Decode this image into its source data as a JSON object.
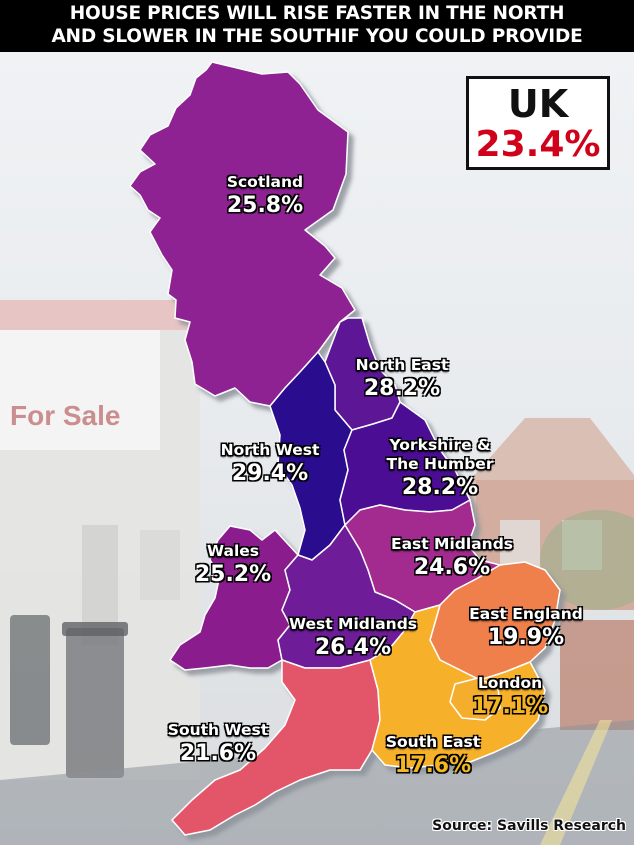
{
  "headline": {
    "line1": "HOUSE PRICES WILL RISE FASTER IN THE NORTH",
    "line2": "AND SLOWER IN THE SOUTHIF YOU COULD PROVIDE"
  },
  "uk_total": {
    "label": "UK",
    "value": "23.4%"
  },
  "background": {
    "sign_text": "For Sale"
  },
  "regions": [
    {
      "key": "scotland",
      "name": "Scotland",
      "value": "25.8%",
      "growth_pct": 25.8,
      "color": "#8e2393",
      "value_color": "#ffffff"
    },
    {
      "key": "north_east",
      "name": "North East",
      "value": "28.2%",
      "growth_pct": 28.2,
      "color": "#5b1596",
      "value_color": "#ffffff"
    },
    {
      "key": "north_west",
      "name": "North West",
      "value": "29.4%",
      "growth_pct": 29.4,
      "color": "#2b0a8f",
      "value_color": "#ffffff"
    },
    {
      "key": "yorkshire",
      "name": "Yorkshire & The Humber",
      "name_line1": "Yorkshire &",
      "name_line2": "The Humber",
      "value": "28.2%",
      "growth_pct": 28.2,
      "color": "#4b0f94",
      "value_color": "#ffffff"
    },
    {
      "key": "wales",
      "name": "Wales",
      "value": "25.2%",
      "growth_pct": 25.2,
      "color": "#8a1f8e",
      "value_color": "#ffffff"
    },
    {
      "key": "east_midlands",
      "name": "East Midlands",
      "value": "24.6%",
      "growth_pct": 24.6,
      "color": "#a32a8e",
      "value_color": "#ffffff"
    },
    {
      "key": "west_midlands",
      "name": "West Midlands",
      "value": "26.4%",
      "growth_pct": 26.4,
      "color": "#6e1a97",
      "value_color": "#ffffff"
    },
    {
      "key": "east_england",
      "name": "East England",
      "value": "19.9%",
      "growth_pct": 19.9,
      "color": "#ef7f4c",
      "value_color": "#ffffff"
    },
    {
      "key": "london",
      "name": "London",
      "value": "17.1%",
      "growth_pct": 17.1,
      "color": "#f5ad2d",
      "value_color": "#f5b71f"
    },
    {
      "key": "south_west",
      "name": "South West",
      "value": "21.6%",
      "growth_pct": 21.6,
      "color": "#e3566a",
      "value_color": "#ffffff"
    },
    {
      "key": "south_east",
      "name": "South East",
      "value": "17.6%",
      "growth_pct": 17.6,
      "color": "#f6b02a",
      "value_color": "#f5b71f"
    }
  ],
  "source": "Source: Savills Research",
  "colors": {
    "headline_bg": "#000000",
    "uk_value": "#d0021b",
    "map_shadow": "#9aa0a8",
    "region_border": "#ffffff"
  }
}
